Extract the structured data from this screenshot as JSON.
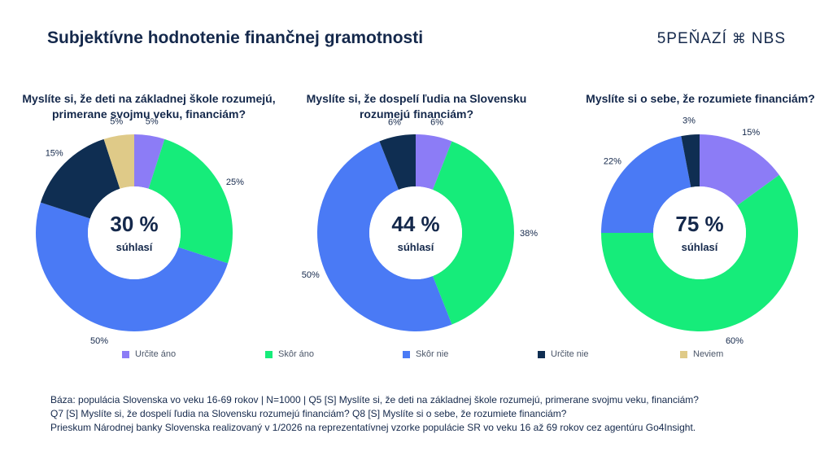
{
  "header": {
    "title": "Subjektívne hodnotenie finančnej gramotnosti",
    "brand_left": "5PEŇAZÍ",
    "brand_right": "NBS"
  },
  "colors": {
    "urcite_ano": "#8c7cf6",
    "skor_ano": "#16ec7a",
    "skor_nie": "#4a7af5",
    "urcite_nie": "#0f2e52",
    "neviem": "#dfca88"
  },
  "legend": [
    {
      "label": "Určite áno",
      "color": "#8c7cf6"
    },
    {
      "label": "Skôr áno",
      "color": "#16ec7a"
    },
    {
      "label": "Skôr nie",
      "color": "#4a7af5"
    },
    {
      "label": "Určite nie",
      "color": "#0f2e52"
    },
    {
      "label": "Neviem",
      "color": "#dfca88"
    }
  ],
  "chart_data": [
    {
      "type": "pie",
      "question": "Myslíte si, že deti na základnej škole rozumejú, primerane svojmu veku, financiám?",
      "center_value": "30 %",
      "center_label": "súhlasí",
      "categories": [
        "Určite áno",
        "Skôr áno",
        "Skôr nie",
        "Určite nie",
        "Neviem"
      ],
      "values": [
        5,
        25,
        50,
        15,
        5
      ],
      "labels": [
        "5%",
        "25%",
        "50%",
        "15%",
        "5%"
      ]
    },
    {
      "type": "pie",
      "question": "Myslíte si, že dospelí ľudia na Slovensku rozumejú financiám?",
      "center_value": "44 %",
      "center_label": "súhlasí",
      "categories": [
        "Určite áno",
        "Skôr áno",
        "Skôr nie",
        "Určite nie"
      ],
      "values": [
        6,
        38,
        50,
        6
      ],
      "labels": [
        "6%",
        "38%",
        "50%",
        "6%"
      ]
    },
    {
      "type": "pie",
      "question": "Myslíte si o sebe, že rozumiete financiám?",
      "center_value": "75 %",
      "center_label": "súhlasí",
      "categories": [
        "Určite áno",
        "Skôr áno",
        "Skôr nie",
        "Určite nie"
      ],
      "values": [
        15,
        60,
        22,
        3
      ],
      "labels": [
        "15%",
        "60%",
        "22%",
        "3%"
      ]
    }
  ],
  "footer": {
    "line1": "Báza: populácia Slovenska vo veku 16-69 rokov | N=1000 | Q5 [S] Myslíte si, že deti na základnej škole rozumejú, primerane svojmu veku, financiám?",
    "line2": "Q7 [S] Myslíte si, že dospelí ľudia na Slovensku rozumejú financiám? Q8 [S] Myslíte si o sebe, že rozumiete financiám?",
    "line3": "Prieskum Národnej banky Slovenska realizovaný v 1/2026 na reprezentatívnej vzorke populácie SR vo veku 16 až 69 rokov cez agentúru Go4Insight."
  }
}
